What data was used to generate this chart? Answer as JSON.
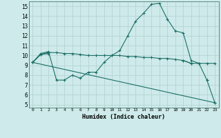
{
  "xlabel": "Humidex (Indice chaleur)",
  "xlim": [
    -0.5,
    23.5
  ],
  "ylim": [
    4.7,
    15.5
  ],
  "yticks": [
    5,
    6,
    7,
    8,
    9,
    10,
    11,
    12,
    13,
    14,
    15
  ],
  "xticks": [
    0,
    1,
    2,
    3,
    4,
    5,
    6,
    7,
    8,
    9,
    10,
    11,
    12,
    13,
    14,
    15,
    16,
    17,
    18,
    19,
    20,
    21,
    22,
    23
  ],
  "bg_color": "#ceeaea",
  "grid_color": "#b0d0d0",
  "line_color": "#1a6e65",
  "series": [
    {
      "x": [
        0,
        1,
        2,
        3,
        4,
        5,
        6,
        7,
        8,
        9,
        10,
        11,
        12,
        13,
        14,
        15,
        16,
        17,
        18,
        19,
        20,
        21,
        22,
        23
      ],
      "y": [
        9.3,
        10.1,
        10.3,
        10.3,
        10.2,
        10.2,
        10.1,
        10.0,
        10.0,
        10.0,
        10.0,
        10.0,
        9.9,
        9.9,
        9.8,
        9.8,
        9.7,
        9.7,
        9.6,
        9.5,
        9.2,
        9.2,
        9.2,
        9.2
      ]
    },
    {
      "x": [
        0,
        1,
        2,
        3,
        4,
        5,
        6,
        7,
        8,
        9,
        10,
        11,
        12,
        13,
        14,
        15,
        16,
        17,
        18,
        19,
        20,
        21,
        22
      ],
      "y": [
        9.3,
        10.2,
        10.4,
        7.5,
        7.5,
        8.0,
        7.7,
        8.3,
        8.3,
        9.3,
        10.0,
        10.5,
        12.0,
        13.5,
        14.3,
        15.2,
        15.3,
        13.7,
        12.5,
        12.3,
        9.5,
        9.2,
        7.5
      ]
    },
    {
      "segments": [
        {
          "x": [
            0,
            1,
            2
          ],
          "y": [
            9.3,
            10.1,
            10.2
          ]
        },
        {
          "x": [
            19,
            20
          ],
          "y": [
            9.5,
            9.2
          ]
        },
        {
          "x": [
            22,
            23
          ],
          "y": [
            7.5,
            5.2
          ]
        }
      ]
    },
    {
      "segments": [
        {
          "x": [
            0,
            23
          ],
          "y": [
            9.3,
            5.2
          ]
        }
      ]
    }
  ]
}
